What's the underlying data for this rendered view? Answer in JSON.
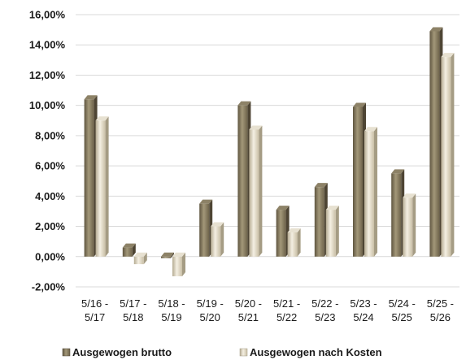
{
  "chart_data": {
    "type": "bar",
    "title": "",
    "xlabel": "",
    "ylabel": "",
    "categories": [
      [
        "5/16 -",
        "5/17"
      ],
      [
        "5/17 -",
        "5/18"
      ],
      [
        "5/18 -",
        "5/19"
      ],
      [
        "5/19 -",
        "5/20"
      ],
      [
        "5/20 -",
        "5/21"
      ],
      [
        "5/21 -",
        "5/22"
      ],
      [
        "5/22 -",
        "5/23"
      ],
      [
        "5/23 -",
        "5/24"
      ],
      [
        "5/24 -",
        "5/25"
      ],
      [
        "5/25 -",
        "5/26"
      ]
    ],
    "series": [
      {
        "name": "Ausgewogen brutto",
        "color": "#7d7157",
        "values": [
          10.4,
          0.6,
          -0.1,
          3.5,
          10.0,
          3.1,
          4.6,
          9.9,
          5.5,
          14.9
        ]
      },
      {
        "name": "Ausgewogen nach Kosten",
        "color": "#d8cfb8",
        "values": [
          9.0,
          -0.5,
          -1.3,
          2.0,
          8.4,
          1.6,
          3.1,
          8.3,
          3.9,
          13.2
        ]
      }
    ],
    "ylim": [
      -2,
      16
    ],
    "yticks": [
      -2,
      0,
      2,
      4,
      6,
      8,
      10,
      12,
      14,
      16
    ],
    "ytick_labels": [
      "-2,00%",
      "0,00%",
      "2,00%",
      "4,00%",
      "6,00%",
      "8,00%",
      "10,00%",
      "12,00%",
      "14,00%",
      "16,00%"
    ],
    "grid": true,
    "legend_position": "bottom"
  }
}
